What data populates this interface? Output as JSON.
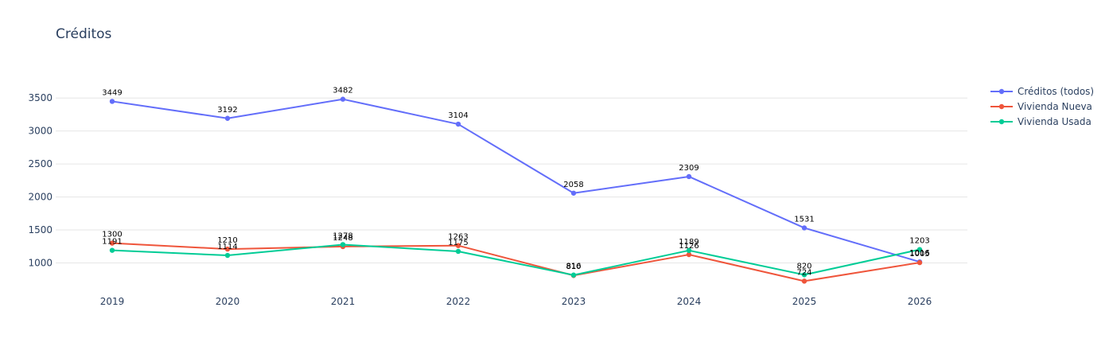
{
  "chart_data": {
    "type": "line",
    "title": "Créditos",
    "xlabel": "",
    "ylabel": "",
    "x": [
      "2019",
      "2020",
      "2021",
      "2022",
      "2023",
      "2024",
      "2025",
      "2026"
    ],
    "ylim": [
      620,
      3780
    ],
    "yticks": [
      1000,
      1500,
      2000,
      2500,
      3000,
      3500
    ],
    "grid": true,
    "legend_position": "top-right",
    "series": [
      {
        "name": "Créditos (todos)",
        "color": "#636efa",
        "values": [
          3449,
          3192,
          3482,
          3104,
          2058,
          2309,
          1531,
          1016
        ]
      },
      {
        "name": "Vivienda Nueva",
        "color": "#ef553b",
        "values": [
          1300,
          1210,
          1248,
          1263,
          810,
          1126,
          724,
          1005
        ]
      },
      {
        "name": "Vivienda Usada",
        "color": "#00cc96",
        "values": [
          1191,
          1114,
          1278,
          1175,
          816,
          1189,
          820,
          1203
        ]
      }
    ]
  }
}
